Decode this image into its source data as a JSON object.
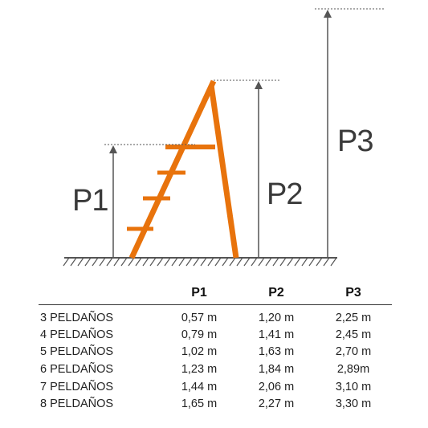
{
  "diagram": {
    "labels": {
      "p1": "P1",
      "p2": "P2",
      "p3": "P3"
    },
    "colors": {
      "ladder": "#e8730c",
      "lines": "#555555"
    }
  },
  "table": {
    "headers": [
      "",
      "P1",
      "P2",
      "P3"
    ],
    "rows": [
      {
        "model": "3 PELDAÑOS",
        "p1": "0,57 m",
        "p2": "1,20 m",
        "p3": "2,25 m"
      },
      {
        "model": "4 PELDAÑOS",
        "p1": "0,79 m",
        "p2": "1,41 m",
        "p3": "2,45 m"
      },
      {
        "model": "5 PELDAÑOS",
        "p1": "1,02 m",
        "p2": "1,63 m",
        "p3": "2,70 m"
      },
      {
        "model": "6 PELDAÑOS",
        "p1": "1,23 m",
        "p2": "1,84 m",
        "p3": "2,89m"
      },
      {
        "model": "7 PELDAÑOS",
        "p1": "1,44 m",
        "p2": "2,06 m",
        "p3": "3,10 m"
      },
      {
        "model": "8 PELDAÑOS",
        "p1": "1,65 m",
        "p2": "2,27 m",
        "p3": "3,30 m"
      }
    ]
  }
}
